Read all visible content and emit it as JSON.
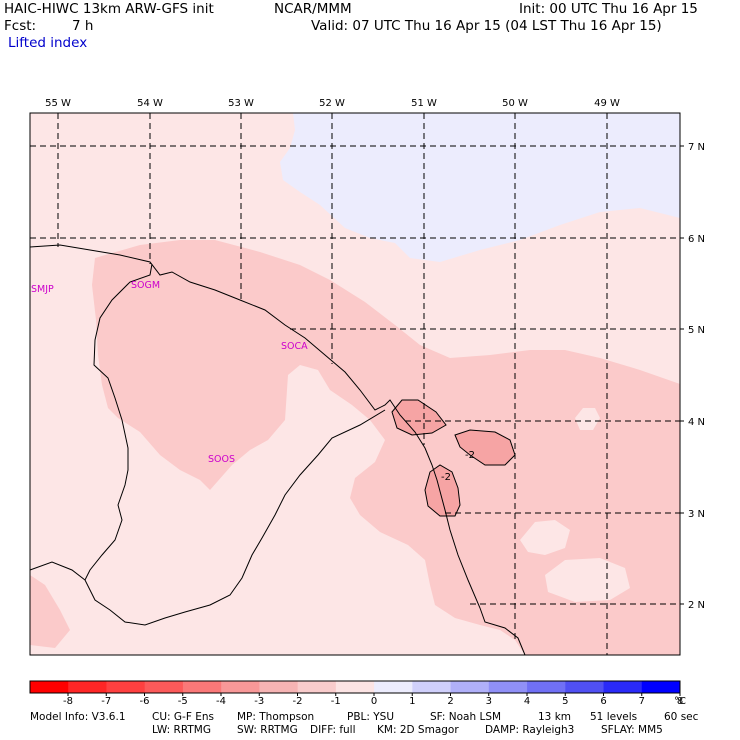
{
  "header": {
    "model": "HAIC-HIWC 13km ARW-GFS init",
    "org": "NCAR/MMM",
    "init": "Init: 00 UTC Thu 16 Apr 15",
    "fcst_label": "Fcst:",
    "fcst_value": "7 h",
    "valid": "Valid: 07 UTC Thu 16 Apr 15 (04 LST Thu 16 Apr 15)",
    "variable": "Lifted index"
  },
  "map": {
    "lon_labels": [
      "55 W",
      "54 W",
      "53 W",
      "52 W",
      "51 W",
      "50 W",
      "49 W"
    ],
    "lat_labels": [
      "7 N",
      "6 N",
      "5 N",
      "4 N",
      "3 N",
      "2 N"
    ],
    "station_labels": [
      "SMJP",
      "SOGM",
      "SOCA",
      "SOOS"
    ],
    "contour_labels": [
      "-2",
      "-2"
    ],
    "colors": {
      "weak_negative": "#fde6e6",
      "moderate_negative": "#fbcaca",
      "strong_negative": "#f6a4a4",
      "weak_positive": "#ececfd",
      "coastline": "#000000",
      "gridline": "#000000",
      "station_label": "#cc00cc"
    }
  },
  "colorbar": {
    "tick_labels": [
      "-8",
      "-7",
      "-6",
      "-5",
      "-4",
      "-3",
      "-2",
      "-1",
      "0",
      "1",
      "2",
      "3",
      "4",
      "5",
      "6",
      "7",
      "8"
    ],
    "unit": "°C",
    "colors": [
      "#ff0000",
      "#ff2626",
      "#ff4040",
      "#fc5a5a",
      "#fa7878",
      "#f89898",
      "#f6b4b4",
      "#f9cccc",
      "#fce4e4",
      "#ececfd",
      "#d0d0fb",
      "#b0b0f9",
      "#9090f7",
      "#7070f5",
      "#5050f3",
      "#2a2af8",
      "#0000ff"
    ]
  },
  "footer": {
    "line1": [
      "Model Info: V3.6.1",
      "CU: G-F Ens",
      "MP: Thompson",
      "PBL: YSU",
      "SF: Noah LSM",
      "13 km",
      "51 levels",
      "60 sec"
    ],
    "line2": [
      "LW: RRTMG",
      "SW: RRTMG",
      "DIFF: full",
      "KM: 2D Smagor",
      "DAMP: Rayleigh3",
      "SFLAY: MM5"
    ]
  }
}
